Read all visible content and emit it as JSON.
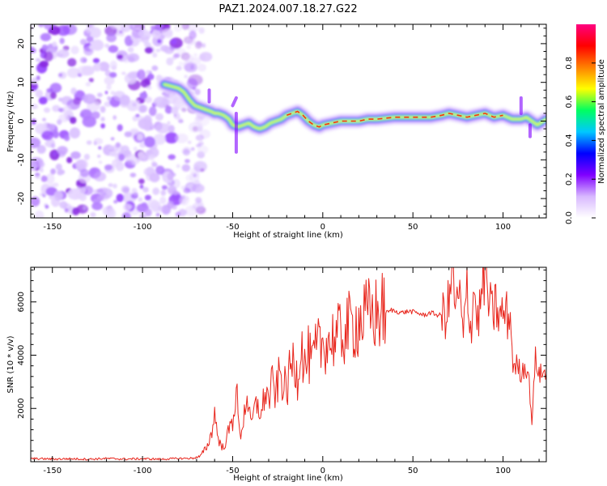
{
  "figure_title": "PAZ1.2024.007.18.27.G22",
  "chart_data": [
    {
      "type": "heatmap",
      "title": "",
      "xlabel": "Height of straight line (km)",
      "ylabel": "Frequency (Hz)",
      "xlim": [
        -162,
        124
      ],
      "ylim": [
        -25,
        25
      ],
      "xticks": [
        -150,
        -100,
        -50,
        0,
        50,
        100
      ],
      "xtick_labels": [
        "-150",
        "-100",
        "-50",
        "0",
        "50",
        "100"
      ],
      "yticks": [
        -20,
        -10,
        0,
        10,
        20
      ],
      "ytick_labels": [
        "-20",
        "-10",
        "0",
        "10",
        "20"
      ],
      "grid": false,
      "noise_region": {
        "x_range": [
          -162,
          -72
        ],
        "y_range": [
          -25,
          25
        ]
      },
      "ridge": {
        "x": [
          -88,
          -84,
          -80,
          -77,
          -74,
          -71,
          -68,
          -65,
          -62,
          -60,
          -58,
          -55,
          -52,
          -50,
          -47,
          -44,
          -41,
          -38,
          -35,
          -32,
          -29,
          -26,
          -23,
          -20,
          -17,
          -14,
          -11,
          -8,
          -5,
          -2,
          0,
          5,
          10,
          15,
          20,
          25,
          30,
          40,
          50,
          60,
          66,
          70,
          75,
          80,
          85,
          90,
          95,
          100,
          105,
          110,
          113,
          116,
          119,
          124
        ],
        "y": [
          9.5,
          9,
          8.5,
          7.5,
          5.5,
          4,
          3.5,
          3,
          2.5,
          2,
          2,
          1.5,
          0.5,
          -1,
          -1.5,
          -1,
          -0.5,
          -1.5,
          -2,
          -1.5,
          -0.5,
          0,
          0.5,
          1.5,
          2,
          2.5,
          1.5,
          0,
          -1,
          -1.5,
          -1,
          -0.5,
          0,
          0,
          0,
          0.5,
          0.5,
          1,
          1,
          1,
          1.5,
          2,
          1.5,
          1,
          1.5,
          2,
          1,
          1.5,
          0.5,
          0.5,
          1,
          0,
          -1,
          0.5
        ]
      },
      "colorbar": {
        "label": "Normalized spectral amplitude",
        "range": [
          0,
          1
        ],
        "ticks": [
          0,
          0.2,
          0.4,
          0.6,
          0.8
        ],
        "tick_labels": [
          "0.0",
          "0.2",
          "0.4",
          "0.6",
          "0.8"
        ],
        "colormap": [
          "#ffffff",
          "#d8b8ff",
          "#8000ff",
          "#0000ff",
          "#00c8ff",
          "#00ff60",
          "#ffff00",
          "#ff8000",
          "#ff0000",
          "#ff0080"
        ]
      }
    },
    {
      "type": "line",
      "title": "",
      "xlabel": "Height of straight line (km)",
      "ylabel": "SNR (10 * v/v)",
      "xlim": [
        -162,
        124
      ],
      "ylim": [
        0,
        7300
      ],
      "xticks": [
        -150,
        -100,
        -50,
        0,
        50,
        100
      ],
      "xtick_labels": [
        "-150",
        "-100",
        "-50",
        "0",
        "50",
        "100"
      ],
      "yticks": [
        2000,
        4000,
        6000
      ],
      "ytick_labels": [
        "2000",
        "4000",
        "6000"
      ],
      "grid": false,
      "color": "#e8261d",
      "x": [
        -162,
        -150,
        -140,
        -130,
        -120,
        -110,
        -100,
        -90,
        -80,
        -72,
        -68,
        -64,
        -62,
        -60,
        -58,
        -56,
        -54,
        -52,
        -50,
        -48,
        -46,
        -44,
        -42,
        -40,
        -38,
        -36,
        -34,
        -32,
        -30,
        -28,
        -26,
        -24,
        -22,
        -20,
        -18,
        -16,
        -14,
        -12,
        -10,
        -8,
        -6,
        -4,
        -2,
        0,
        2,
        4,
        6,
        8,
        10,
        12,
        14,
        16,
        18,
        20,
        22,
        24,
        26,
        28,
        30,
        32,
        34,
        36,
        38,
        40,
        44,
        48,
        52,
        56,
        60,
        64,
        68,
        70,
        72,
        74,
        76,
        78,
        80,
        82,
        84,
        86,
        88,
        90,
        92,
        94,
        96,
        98,
        100,
        102,
        104,
        106,
        108,
        110,
        112,
        114,
        116,
        118,
        120,
        124
      ],
      "y": [
        120,
        100,
        110,
        95,
        120,
        100,
        110,
        95,
        120,
        130,
        200,
        600,
        1000,
        1800,
        900,
        500,
        700,
        1200,
        1500,
        2800,
        900,
        1600,
        2600,
        1300,
        1900,
        2200,
        1700,
        2700,
        2300,
        2900,
        2500,
        3300,
        3000,
        2600,
        3500,
        3800,
        3200,
        4600,
        3500,
        4000,
        3600,
        4100,
        4300,
        4400,
        4600,
        4500,
        4700,
        4600,
        4800,
        4900,
        5000,
        5100,
        5200,
        5300,
        5350,
        5400,
        5500,
        5550,
        5500,
        5600,
        5650,
        5600,
        5700,
        5650,
        5600,
        5650,
        5600,
        5500,
        5600,
        5500,
        5550,
        5900,
        7300,
        5600,
        6300,
        4500,
        6800,
        5000,
        6500,
        5200,
        6200,
        7300,
        6000,
        5500,
        5900,
        5300,
        5600,
        5500,
        5400,
        3400,
        3700,
        3300,
        3600,
        3400,
        1500,
        3900,
        3300,
        3300
      ]
    }
  ]
}
